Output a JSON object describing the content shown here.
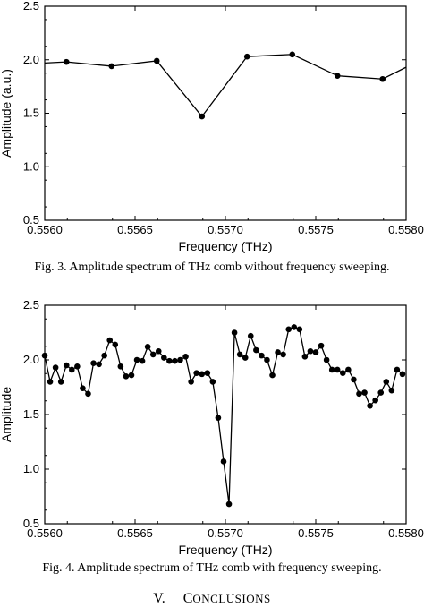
{
  "chart_data": [
    {
      "type": "line",
      "xlabel": "Frequency (THz)",
      "ylabel": "Amplitude (a.u.)",
      "xlim": [
        0.556,
        0.558
      ],
      "ylim": [
        0.5,
        2.5
      ],
      "xticks": [
        "0.5560",
        "0.5565",
        "0.5570",
        "0.5575",
        "0.5580"
      ],
      "yticks": [
        "0.5",
        "1.0",
        "1.5",
        "2.0",
        "2.5"
      ],
      "grid": false,
      "series": [
        {
          "x": [
            0.556,
            0.55612,
            0.55637,
            0.55662,
            0.55687,
            0.55712,
            0.55737,
            0.55762,
            0.55787,
            0.558
          ],
          "y": [
            1.97,
            1.98,
            1.94,
            1.99,
            1.47,
            2.03,
            2.05,
            1.85,
            1.82,
            1.93
          ],
          "markers": [
            false,
            true,
            true,
            true,
            true,
            true,
            true,
            true,
            true,
            false
          ]
        }
      ]
    },
    {
      "type": "line",
      "xlabel": "Frequency (THz)",
      "ylabel": "Amplitude",
      "xlim": [
        0.556,
        0.558
      ],
      "ylim": [
        0.5,
        2.5
      ],
      "xticks": [
        "0.5560",
        "0.5565",
        "0.5570",
        "0.5575",
        "0.5580"
      ],
      "yticks": [
        "0.5",
        "1.0",
        "1.5",
        "2.0",
        "2.5"
      ],
      "grid": false,
      "series": [
        {
          "x": [
            0.556,
            0.55603,
            0.55606,
            0.55609,
            0.55612,
            0.55615,
            0.55618,
            0.55621,
            0.55624,
            0.55627,
            0.5563,
            0.55633,
            0.55636,
            0.55639,
            0.55642,
            0.55645,
            0.55648,
            0.55651,
            0.55654,
            0.55657,
            0.5566,
            0.55663,
            0.55666,
            0.55669,
            0.55672,
            0.55675,
            0.55678,
            0.55681,
            0.55684,
            0.55687,
            0.5569,
            0.55693,
            0.55696,
            0.55699,
            0.55702,
            0.55705,
            0.55708,
            0.55711,
            0.55714,
            0.55717,
            0.5572,
            0.55723,
            0.55726,
            0.55729,
            0.55732,
            0.55735,
            0.55738,
            0.55741,
            0.55744,
            0.55747,
            0.5575,
            0.55753,
            0.55756,
            0.55759,
            0.55762,
            0.55765,
            0.55768,
            0.55771,
            0.55774,
            0.55777,
            0.5578,
            0.55783,
            0.55786,
            0.55789,
            0.55792,
            0.55795,
            0.55798
          ],
          "y": [
            2.04,
            1.8,
            1.93,
            1.8,
            1.95,
            1.91,
            1.94,
            1.74,
            1.69,
            1.97,
            1.96,
            2.04,
            2.18,
            2.14,
            1.94,
            1.85,
            1.86,
            2.0,
            1.99,
            2.12,
            2.05,
            2.08,
            2.02,
            1.99,
            1.99,
            2.0,
            2.03,
            1.8,
            1.88,
            1.87,
            1.88,
            1.8,
            1.47,
            1.07,
            0.68,
            2.25,
            2.05,
            2.02,
            2.22,
            2.09,
            2.04,
            2.0,
            1.86,
            2.07,
            2.05,
            2.28,
            2.3,
            2.28,
            2.03,
            2.08,
            2.07,
            2.13,
            2.0,
            1.91,
            1.91,
            1.88,
            1.91,
            1.82,
            1.69,
            1.7,
            1.58,
            1.63,
            1.7,
            1.8,
            1.72,
            1.91,
            1.87
          ]
        }
      ]
    }
  ],
  "captions": {
    "fig3": "Fig. 3. Amplitude spectrum of THz comb without frequency sweeping.",
    "fig4": "Fig. 4. Amplitude spectrum of THz comb with frequency sweeping."
  },
  "section_heading": {
    "numeral": "V.",
    "first_letter": "C",
    "rest": "ONCLUSIONS"
  }
}
